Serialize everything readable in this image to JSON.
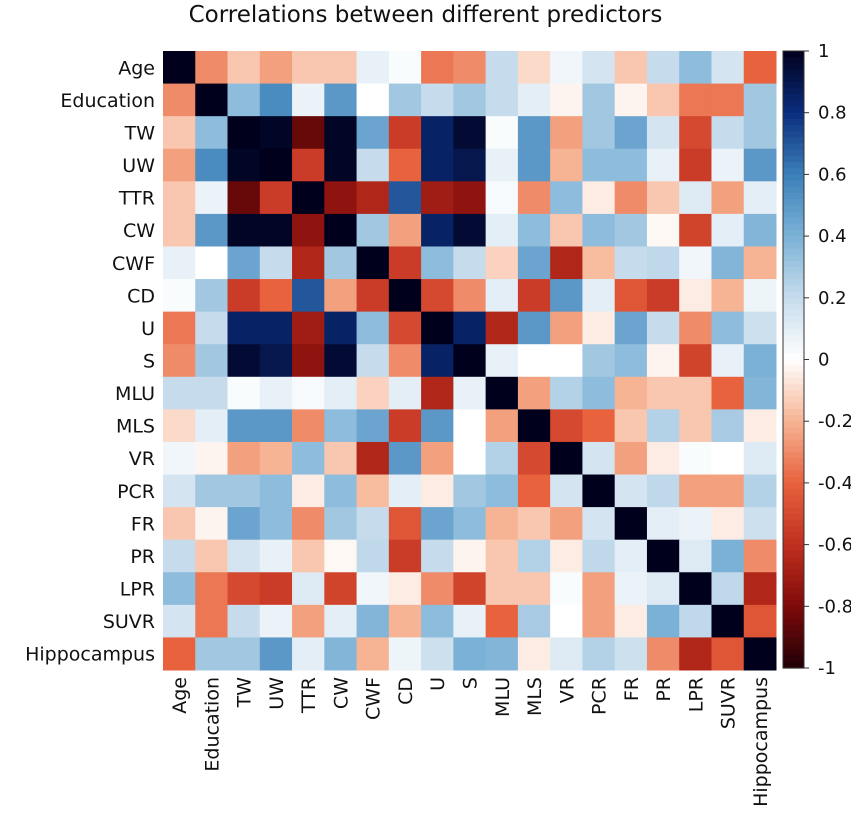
{
  "chart_data": {
    "type": "heatmap",
    "title": "Correlations between different predictors",
    "xlabel": "",
    "ylabel": "",
    "labels": [
      "Age",
      "Education",
      "TW",
      "UW",
      "TTR",
      "CW",
      "CWF",
      "CD",
      "U",
      "S",
      "MLU",
      "MLS",
      "VR",
      "PCR",
      "FR",
      "PR",
      "LPR",
      "SUVR",
      "Hippocampus"
    ],
    "upper_triangle": [
      [
        -0.3,
        -0.15,
        -0.25,
        -0.15,
        -0.15,
        0.08,
        0.02,
        -0.35,
        -0.3,
        0.2,
        -0.1,
        0.05,
        0.15,
        -0.15,
        0.2,
        0.35,
        0.15,
        -0.4
      ],
      [
        0.35,
        0.55,
        0.07,
        0.5,
        0.0,
        0.3,
        0.2,
        0.3,
        0.2,
        0.1,
        -0.03,
        0.3,
        -0.03,
        -0.15,
        -0.35,
        -0.35,
        0.3
      ],
      [
        0.98,
        -0.85,
        0.98,
        0.45,
        -0.55,
        0.85,
        0.95,
        0.02,
        0.5,
        -0.25,
        0.3,
        0.45,
        0.15,
        -0.5,
        0.2,
        0.3
      ],
      [
        -0.55,
        0.98,
        0.2,
        -0.4,
        0.85,
        0.9,
        0.08,
        0.5,
        -0.2,
        0.35,
        0.35,
        0.08,
        -0.55,
        0.07,
        0.5
      ],
      [
        -0.75,
        -0.65,
        0.7,
        -0.7,
        -0.75,
        0.03,
        -0.3,
        0.35,
        -0.05,
        -0.3,
        -0.15,
        0.12,
        -0.25,
        0.1
      ],
      [
        0.3,
        -0.25,
        0.85,
        0.95,
        0.1,
        0.35,
        -0.15,
        0.35,
        0.3,
        -0.02,
        -0.52,
        0.1,
        0.38
      ],
      [
        -0.55,
        0.35,
        0.2,
        -0.12,
        0.45,
        -0.65,
        -0.18,
        0.2,
        0.22,
        0.05,
        0.38,
        -0.2
      ],
      [
        -0.5,
        -0.3,
        0.1,
        -0.55,
        0.5,
        0.1,
        -0.45,
        -0.55,
        -0.05,
        -0.2,
        0.06
      ],
      [
        0.85,
        -0.65,
        0.5,
        -0.25,
        -0.05,
        0.45,
        0.2,
        -0.3,
        0.35,
        0.18
      ],
      [
        0.08,
        0.0,
        0.0,
        0.3,
        0.35,
        -0.03,
        -0.52,
        0.08,
        0.4
      ],
      [
        -0.25,
        0.25,
        0.35,
        -0.2,
        -0.15,
        -0.15,
        -0.4,
        0.38
      ],
      [
        -0.5,
        -0.4,
        -0.15,
        0.25,
        -0.15,
        0.28,
        -0.05
      ],
      [
        0.15,
        -0.25,
        -0.05,
        0.02,
        0.0,
        0.12
      ],
      [
        0.15,
        0.22,
        -0.25,
        -0.25,
        0.25
      ],
      [
        0.1,
        0.07,
        -0.05,
        0.18
      ],
      [
        0.12,
        0.4,
        -0.3
      ],
      [
        0.22,
        -0.65
      ],
      [
        -0.45
      ],
      []
    ],
    "diagonal": 1,
    "zlim": [
      -1,
      1
    ],
    "colorbar_ticks": [
      "1",
      "0.8",
      "0.6",
      "0.4",
      "0.2",
      "0",
      "-0.2",
      "-0.4",
      "-0.6",
      "-0.8",
      "-1"
    ],
    "colorscale": [
      [
        -1,
        "#1f0005"
      ],
      [
        -0.8,
        "#7f0a0a"
      ],
      [
        -0.6,
        "#c0301f"
      ],
      [
        -0.4,
        "#e8623e"
      ],
      [
        -0.2,
        "#f7b494"
      ],
      [
        0,
        "#ffffff"
      ],
      [
        0.2,
        "#c6dcec"
      ],
      [
        0.4,
        "#7bb1d6"
      ],
      [
        0.6,
        "#3a7fb8"
      ],
      [
        0.8,
        "#0b2d7e"
      ],
      [
        1,
        "#00001c"
      ]
    ],
    "legend": "right"
  }
}
